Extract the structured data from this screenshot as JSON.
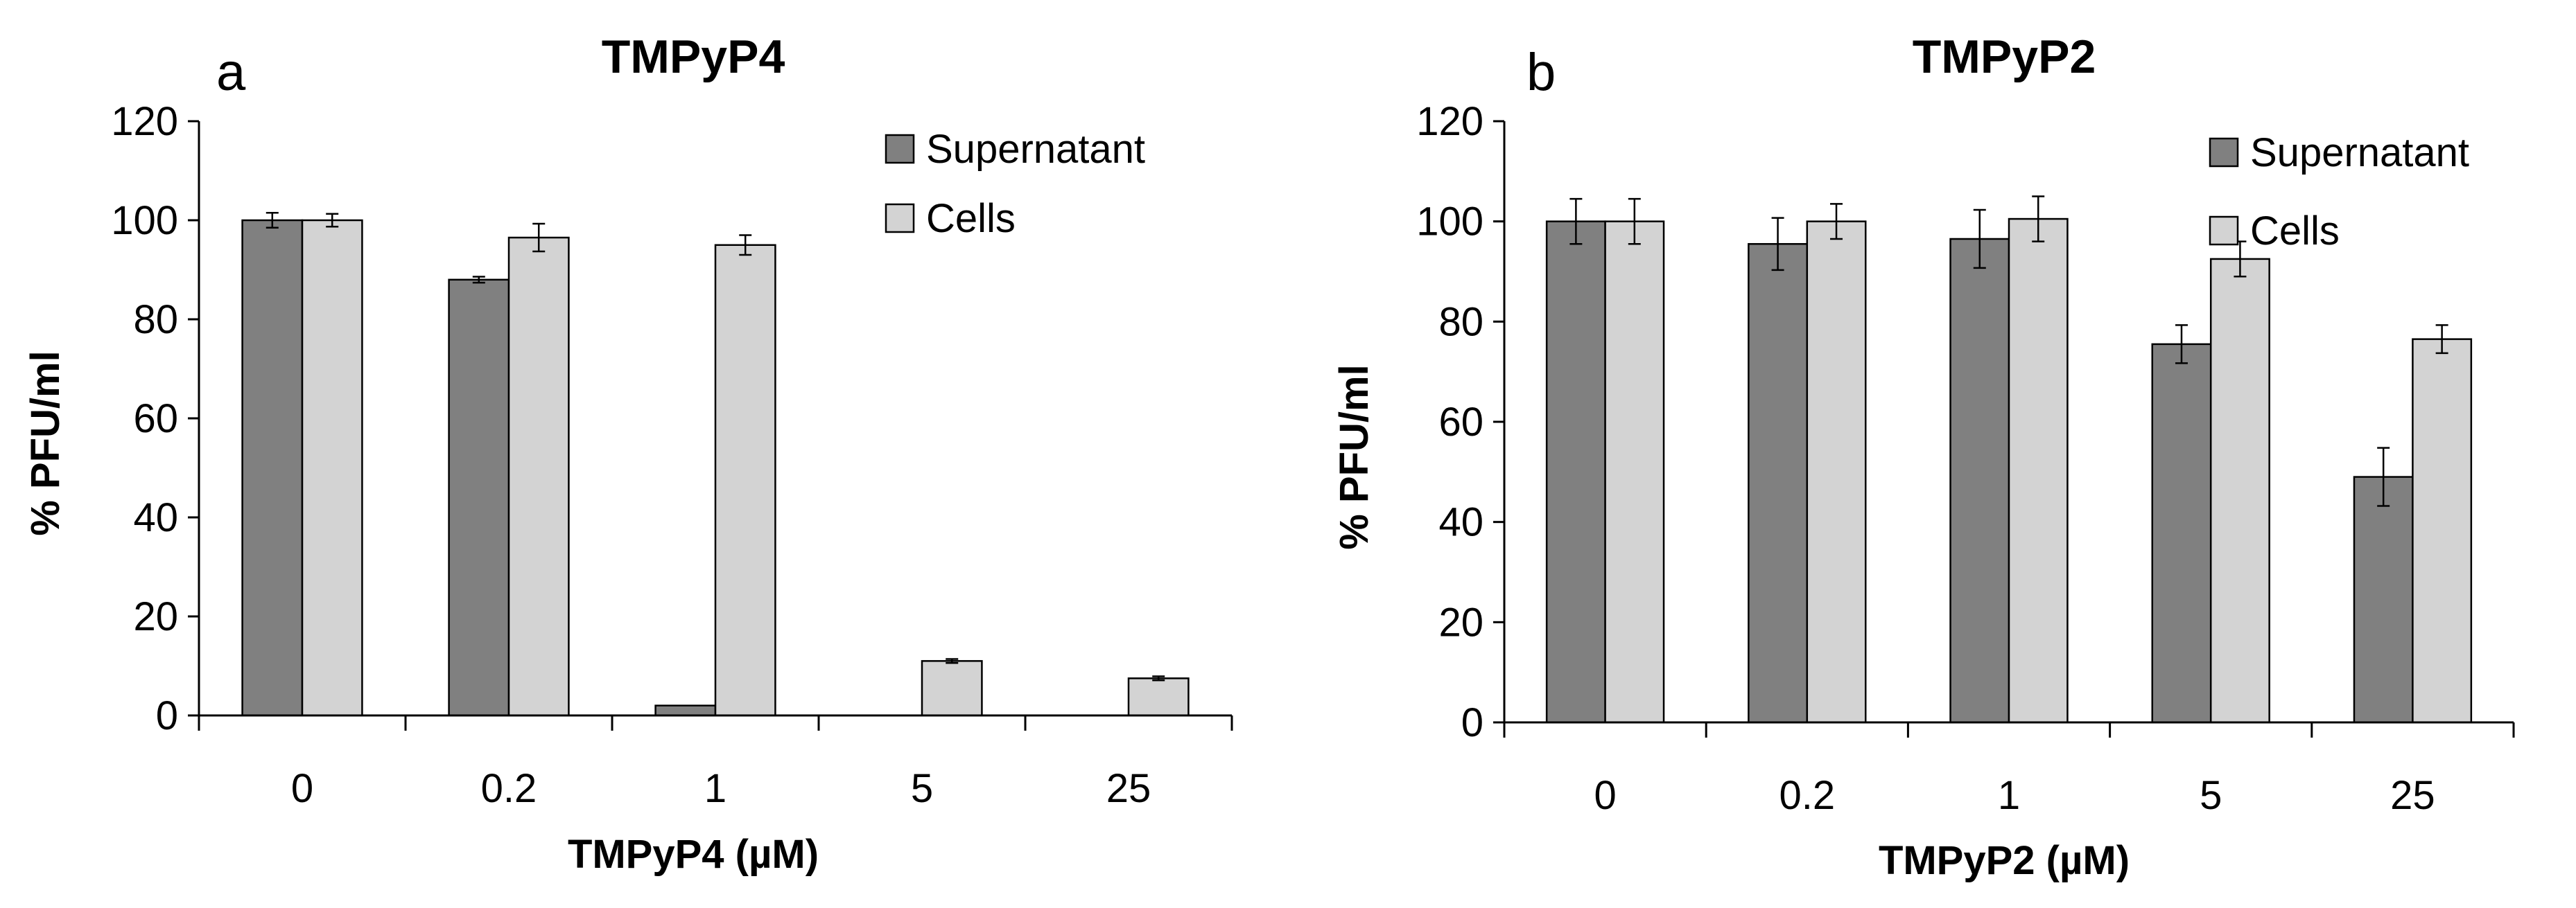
{
  "chart_data": [
    {
      "panel_letter": "a",
      "type": "bar",
      "title": "TMPyP4",
      "xlabel": "TMPyP4 (µM)",
      "ylabel": "% PFU/ml",
      "categories": [
        "0",
        "0.2",
        "1",
        "5",
        "25"
      ],
      "ylim": [
        0,
        120
      ],
      "yticks": [
        0,
        20,
        40,
        60,
        80,
        100,
        120
      ],
      "grid": false,
      "legend_position": "top-right",
      "series": [
        {
          "name": "Supernatant",
          "color": "#808080",
          "values": [
            100,
            88,
            2,
            0,
            0
          ],
          "errors": [
            1.5,
            0.6,
            0,
            0,
            0
          ]
        },
        {
          "name": "Cells",
          "color": "#d3d3d3",
          "values": [
            100,
            96.5,
            95,
            11,
            7.5
          ],
          "errors": [
            1.3,
            2.8,
            2,
            0.4,
            0.4
          ]
        }
      ]
    },
    {
      "panel_letter": "b",
      "type": "bar",
      "title": "TMPyP2",
      "xlabel": "TMPyP2 (µM)",
      "ylabel": "% PFU/ml",
      "categories": [
        "0",
        "0.2",
        "1",
        "5",
        "25"
      ],
      "ylim": [
        0,
        120
      ],
      "yticks": [
        0,
        20,
        40,
        60,
        80,
        100,
        120
      ],
      "grid": false,
      "legend_position": "top-right",
      "series": [
        {
          "name": "Supernatant",
          "color": "#808080",
          "values": [
            100,
            95.5,
            96.5,
            75.5,
            49
          ],
          "errors": [
            4.5,
            5.2,
            5.8,
            3.8,
            5.8
          ]
        },
        {
          "name": "Cells",
          "color": "#d3d3d3",
          "values": [
            100,
            100,
            100.5,
            92.5,
            76.5
          ],
          "errors": [
            4.5,
            3.5,
            4.5,
            3.5,
            2.8
          ]
        }
      ]
    }
  ]
}
